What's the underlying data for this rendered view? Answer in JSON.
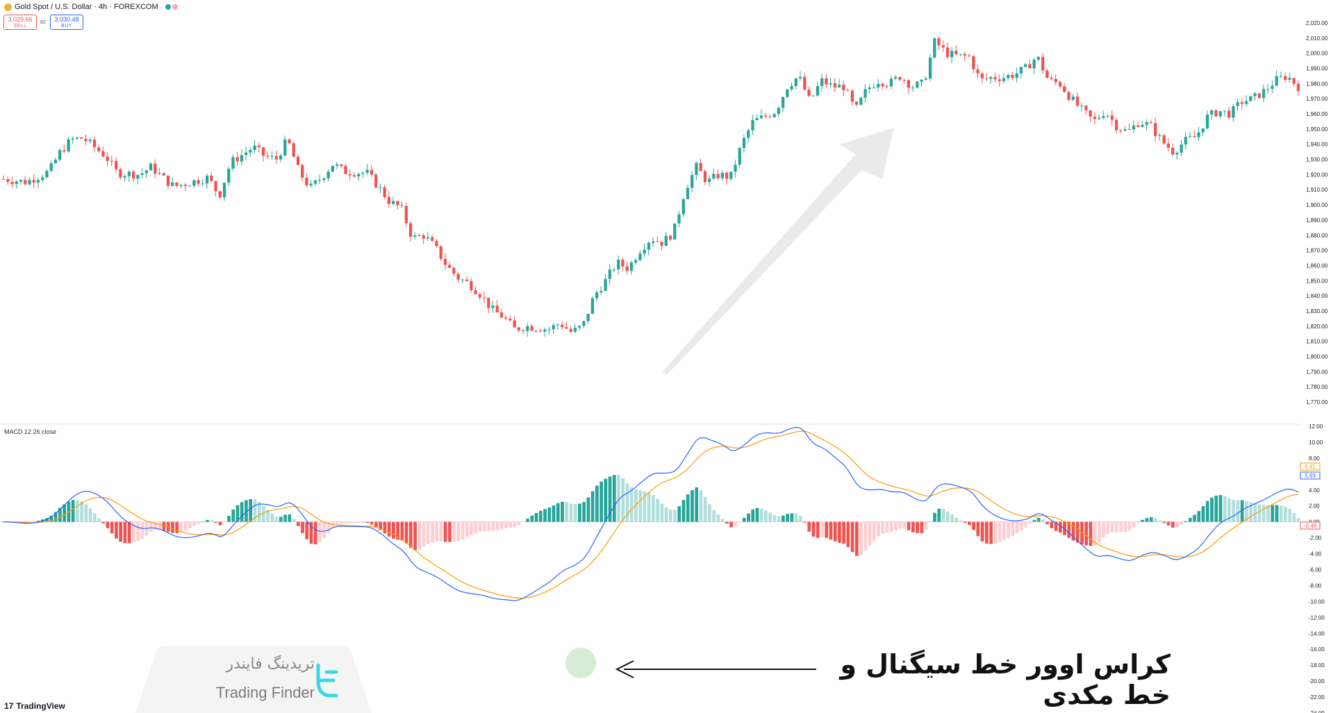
{
  "header": {
    "symbol": "Gold Spot / U.S. Dollar · 4h · FOREXCOM",
    "sell_price": "3,029.66",
    "sell_label": "SELL",
    "spread": "82",
    "buy_price": "3,030.48",
    "buy_label": "BUY"
  },
  "indicator": {
    "label": "MACD 12 26 close",
    "signal_value_tag": "6.42",
    "macd_value_tag": "5.93",
    "hist_value_tag": "-0.49"
  },
  "price_axis": {
    "ticks": [
      "2,020.00",
      "2,010.00",
      "2,000.00",
      "1,990.00",
      "1,980.00",
      "1,970.00",
      "1,960.00",
      "1,950.00",
      "1,940.00",
      "1,930.00",
      "1,920.00",
      "1,910.00",
      "1,900.00",
      "1,890.00",
      "1,880.00",
      "1,870.00",
      "1,860.00",
      "1,850.00",
      "1,840.00",
      "1,830.00",
      "1,820.00",
      "1,810.00",
      "1,800.00",
      "1,790.00",
      "1,780.00",
      "1,770.00"
    ]
  },
  "macd_axis": {
    "ticks": [
      "12.00",
      "10.00",
      "8.00",
      "6.00",
      "4.00",
      "2.00",
      "0.00",
      "-2.00",
      "-4.00",
      "-6.00",
      "-8.00",
      "-10.00",
      "-12.00",
      "-14.00",
      "-16.00",
      "-18.00",
      "-20.00",
      "-22.00",
      "-24.00"
    ]
  },
  "annotation": {
    "text": "کراس اوور خط سیگنال و خط مکدی"
  },
  "brand": {
    "name_fa": "تریدینگ فایندر",
    "name_en": "Trading Finder"
  },
  "footer": {
    "logo_text": "TradingView"
  },
  "colors": {
    "up": "#26a69a",
    "down": "#ef5350",
    "macd_line": "#2962ff",
    "signal_line": "#ff9800"
  },
  "chart_data": {
    "type": "candlestick",
    "title": "Gold Spot / U.S. Dollar · 4h · FOREXCOM",
    "ylim": [
      1765,
      2025
    ],
    "close_path": [
      [
        0,
        1917
      ],
      [
        10,
        1915
      ],
      [
        20,
        1922
      ],
      [
        25,
        1935
      ],
      [
        30,
        1943
      ],
      [
        35,
        1944
      ],
      [
        40,
        1938
      ],
      [
        45,
        1932
      ],
      [
        50,
        1921
      ],
      [
        60,
        1920
      ],
      [
        65,
        1925
      ],
      [
        70,
        1918
      ],
      [
        75,
        1912
      ],
      [
        80,
        1914
      ],
      [
        90,
        1918
      ],
      [
        95,
        1906
      ],
      [
        100,
        1928
      ],
      [
        110,
        1938
      ],
      [
        115,
        1932
      ],
      [
        120,
        1930
      ],
      [
        125,
        1943
      ],
      [
        130,
        1922
      ],
      [
        135,
        1911
      ],
      [
        140,
        1918
      ],
      [
        145,
        1927
      ],
      [
        150,
        1922
      ],
      [
        160,
        1921
      ],
      [
        165,
        1912
      ],
      [
        170,
        1902
      ],
      [
        175,
        1898
      ],
      [
        180,
        1878
      ],
      [
        185,
        1880
      ],
      [
        190,
        1872
      ],
      [
        195,
        1860
      ],
      [
        200,
        1852
      ],
      [
        205,
        1848
      ],
      [
        210,
        1841
      ],
      [
        215,
        1831
      ],
      [
        220,
        1826
      ],
      [
        225,
        1818
      ],
      [
        230,
        1820
      ],
      [
        240,
        1818
      ],
      [
        245,
        1822
      ],
      [
        250,
        1816
      ],
      [
        255,
        1820
      ],
      [
        260,
        1840
      ],
      [
        265,
        1850
      ],
      [
        270,
        1862
      ],
      [
        275,
        1858
      ],
      [
        280,
        1870
      ],
      [
        285,
        1878
      ],
      [
        290,
        1875
      ],
      [
        295,
        1882
      ],
      [
        300,
        1910
      ],
      [
        305,
        1925
      ],
      [
        310,
        1915
      ],
      [
        315,
        1920
      ],
      [
        320,
        1918
      ],
      [
        325,
        1940
      ],
      [
        330,
        1955
      ],
      [
        335,
        1958
      ],
      [
        340,
        1962
      ],
      [
        345,
        1978
      ],
      [
        350,
        1985
      ],
      [
        355,
        1968
      ],
      [
        360,
        1982
      ],
      [
        365,
        1978
      ],
      [
        370,
        1978
      ],
      [
        375,
        1962
      ],
      [
        380,
        1976
      ],
      [
        385,
        1982
      ],
      [
        390,
        1980
      ],
      [
        395,
        1985
      ],
      [
        400,
        1978
      ],
      [
        405,
        1980
      ],
      [
        410,
        2008
      ],
      [
        415,
        2000
      ],
      [
        420,
        1998
      ],
      [
        425,
        1998
      ],
      [
        430,
        1982
      ],
      [
        435,
        1984
      ],
      [
        440,
        1984
      ],
      [
        445,
        1986
      ],
      [
        450,
        1990
      ],
      [
        455,
        1998
      ],
      [
        460,
        1982
      ],
      [
        465,
        1980
      ],
      [
        470,
        1970
      ],
      [
        475,
        1962
      ],
      [
        480,
        1955
      ],
      [
        485,
        1962
      ],
      [
        490,
        1952
      ],
      [
        495,
        1948
      ],
      [
        500,
        1955
      ],
      [
        505,
        1952
      ],
      [
        510,
        1942
      ],
      [
        515,
        1935
      ],
      [
        520,
        1942
      ],
      [
        525,
        1945
      ],
      [
        530,
        1958
      ],
      [
        535,
        1962
      ],
      [
        540,
        1960
      ],
      [
        545,
        1968
      ],
      [
        550,
        1970
      ],
      [
        555,
        1975
      ],
      [
        560,
        1982
      ],
      [
        565,
        1985
      ],
      [
        570,
        1978
      ]
    ],
    "macd": {
      "series": [
        {
          "name": "MACD",
          "color": "#2962ff"
        },
        {
          "name": "Signal",
          "color": "#ff9800"
        },
        {
          "name": "Histogram"
        }
      ],
      "ylim": [
        -24,
        12
      ],
      "crossover_marked": true
    }
  }
}
